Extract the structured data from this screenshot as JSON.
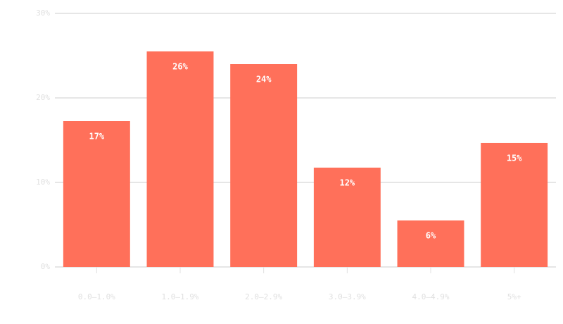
{
  "chart_data": {
    "type": "bar",
    "categories": [
      "0.0–1.0%",
      "1.0–1.9%",
      "2.0–2.9%",
      "3.0–3.9%",
      "4.0–4.9%",
      "5%+"
    ],
    "values": [
      17.25,
      25.5,
      24,
      11.75,
      5.5,
      14.67
    ],
    "value_labels": [
      "17%",
      "26%",
      "24%",
      "12%",
      "6%",
      "15%"
    ],
    "color": "#ff705a",
    "ylim": [
      0,
      30
    ],
    "yticks": [
      {
        "value": 0,
        "label": "0%"
      },
      {
        "value": 10,
        "label": "10%"
      },
      {
        "value": 20,
        "label": "20%"
      },
      {
        "value": 30,
        "label": "30%"
      }
    ],
    "grid": true
  }
}
